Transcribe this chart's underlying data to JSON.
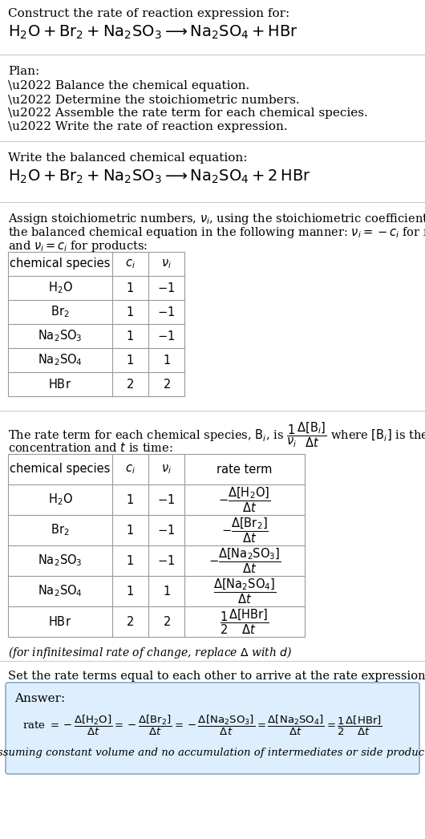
{
  "bg_color": "#ffffff",
  "text_color": "#000000",
  "sep_color": "#cccccc",
  "table_border_color": "#999999",
  "answer_bg": "#ddeeff",
  "answer_border": "#88aacc",
  "s1_line1": "Construct the rate of reaction expression for:",
  "s1_eq": "$\\mathrm{H_2O + Br_2 + Na_2SO_3 \\longrightarrow Na_2SO_4 + HBr}$",
  "s2_header": "Plan:",
  "s2_items": [
    "\\u2022 Balance the chemical equation.",
    "\\u2022 Determine the stoichiometric numbers.",
    "\\u2022 Assemble the rate term for each chemical species.",
    "\\u2022 Write the rate of reaction expression."
  ],
  "s3_header": "Write the balanced chemical equation:",
  "s3_eq": "$\\mathrm{H_2O + Br_2 + Na_2SO_3 \\longrightarrow Na_2SO_4 + 2\\,HBr}$",
  "s4_intro1": "Assign stoichiometric numbers, $\\nu_i$, using the stoichiometric coefficients, $c_i$, from",
  "s4_intro2": "the balanced chemical equation in the following manner: $\\nu_i = -c_i$ for reactants",
  "s4_intro3": "and $\\nu_i = c_i$ for products:",
  "t1_h": [
    "chemical species",
    "$c_i$",
    "$\\nu_i$"
  ],
  "t1_d": [
    [
      "$\\mathrm{H_2O}$",
      "1",
      "$-1$"
    ],
    [
      "$\\mathrm{Br_2}$",
      "1",
      "$-1$"
    ],
    [
      "$\\mathrm{Na_2SO_3}$",
      "1",
      "$-1$"
    ],
    [
      "$\\mathrm{Na_2SO_4}$",
      "1",
      "$1$"
    ],
    [
      "$\\mathrm{HBr}$",
      "2",
      "$2$"
    ]
  ],
  "s5_intro1": "The rate term for each chemical species, $\\mathrm{B}_i$, is $\\dfrac{1}{\\nu_i}\\dfrac{\\Delta[\\mathrm{B}_i]}{\\Delta t}$ where $[\\mathrm{B}_i]$ is the amount",
  "s5_intro2": "concentration and $t$ is time:",
  "t2_h": [
    "chemical species",
    "$c_i$",
    "$\\nu_i$",
    "rate term"
  ],
  "t2_d": [
    [
      "$\\mathrm{H_2O}$",
      "1",
      "$-1$",
      "$-\\dfrac{\\Delta[\\mathrm{H_2O}]}{\\Delta t}$"
    ],
    [
      "$\\mathrm{Br_2}$",
      "1",
      "$-1$",
      "$-\\dfrac{\\Delta[\\mathrm{Br_2}]}{\\Delta t}$"
    ],
    [
      "$\\mathrm{Na_2SO_3}$",
      "1",
      "$-1$",
      "$-\\dfrac{\\Delta[\\mathrm{Na_2SO_3}]}{\\Delta t}$"
    ],
    [
      "$\\mathrm{Na_2SO_4}$",
      "1",
      "$1$",
      "$\\dfrac{\\Delta[\\mathrm{Na_2SO_4}]}{\\Delta t}$"
    ],
    [
      "$\\mathrm{HBr}$",
      "2",
      "$2$",
      "$\\dfrac{1}{2}\\dfrac{\\Delta[\\mathrm{HBr}]}{\\Delta t}$"
    ]
  ],
  "s5_note": "(for infinitesimal rate of change, replace $\\Delta$ with $d$)",
  "s6_intro": "Set the rate terms equal to each other to arrive at the rate expression:",
  "s6_answer_label": "Answer:",
  "s6_rate": "rate $= -\\dfrac{\\Delta[\\mathrm{H_2O}]}{\\Delta t} = -\\dfrac{\\Delta[\\mathrm{Br_2}]}{\\Delta t} = -\\dfrac{\\Delta[\\mathrm{Na_2SO_3}]}{\\Delta t} = \\dfrac{\\Delta[\\mathrm{Na_2SO_4}]}{\\Delta t} = \\dfrac{1}{2}\\dfrac{\\Delta[\\mathrm{HBr}]}{\\Delta t}$",
  "s6_note": "(assuming constant volume and no accumulation of intermediates or side products)"
}
